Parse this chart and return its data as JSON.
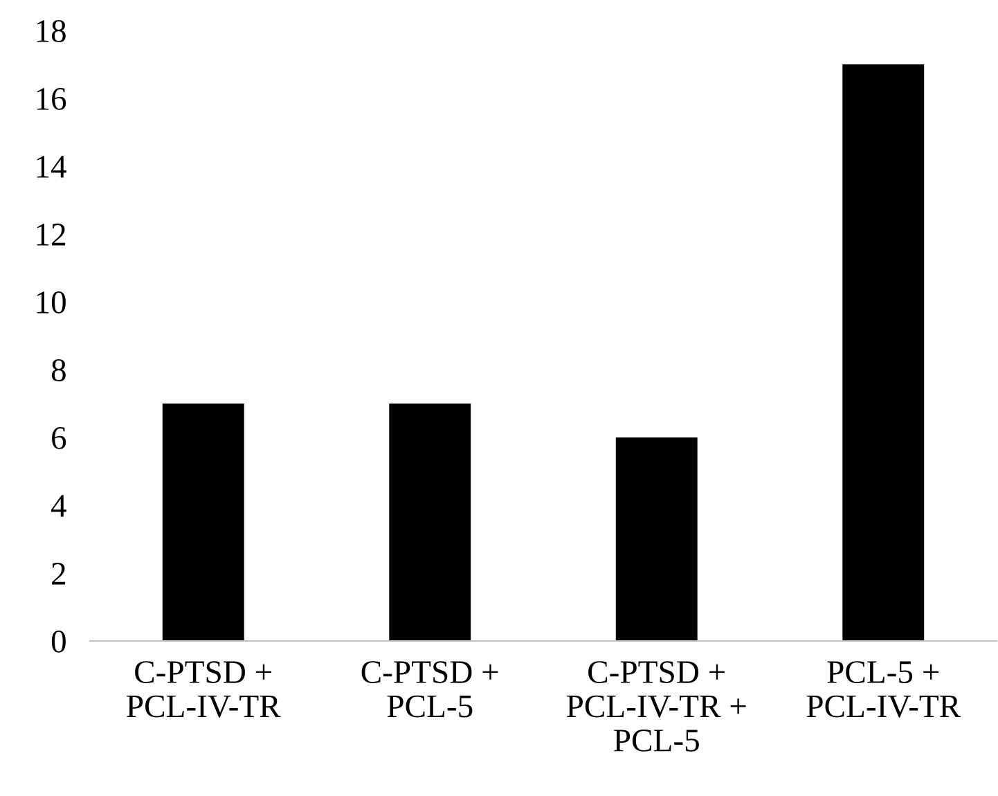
{
  "chart_data": {
    "type": "bar",
    "categories": [
      "C-PTSD +\nPCL-IV-TR",
      "C-PTSD +\nPCL-5",
      "C-PTSD +\nPCL-IV-TR +\nPCL-5",
      "PCL-5 +\nPCL-IV-TR"
    ],
    "values": [
      7,
      7,
      6,
      17
    ],
    "color": "#000000",
    "ylim": [
      0,
      18
    ],
    "yticks": [
      0,
      2,
      4,
      6,
      8,
      10,
      12,
      14,
      16,
      18
    ],
    "grid": false
  }
}
